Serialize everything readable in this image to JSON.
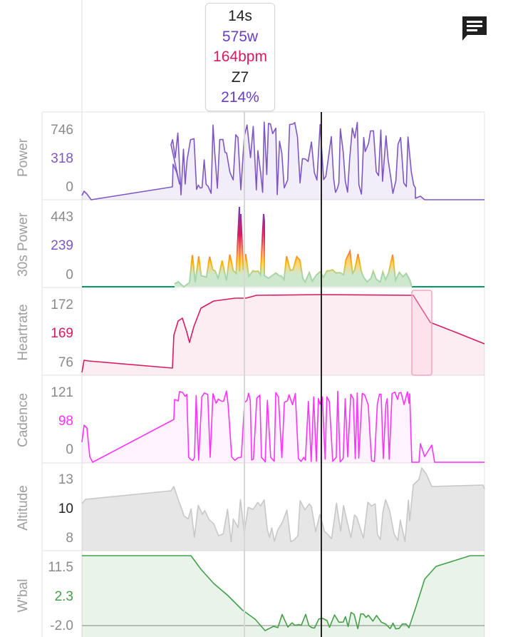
{
  "tooltip": {
    "time": "14s",
    "power": "575w",
    "heartrate": "164bpm",
    "zone": "Z7",
    "percent": "214%"
  },
  "colors": {
    "power": "#7e57c2",
    "heartrate": "#d81b60",
    "cadence": "#ff33ff",
    "altitude": "#bdbdbd",
    "wbal": "#43a047",
    "text": "#222222"
  },
  "toolbar": {
    "comment_icon": "comment-icon"
  },
  "panels": [
    {
      "key": "power",
      "title": "Power",
      "ticks": [
        "746",
        "318",
        "0"
      ]
    },
    {
      "key": "power30",
      "title": "30s Power",
      "ticks": [
        "443",
        "239",
        "0"
      ]
    },
    {
      "key": "hr",
      "title": "Heartrate",
      "ticks": [
        "172",
        "169",
        "76"
      ]
    },
    {
      "key": "cadence",
      "title": "Cadence",
      "ticks": [
        "121",
        "98",
        "0"
      ]
    },
    {
      "key": "altitude",
      "title": "Altitude",
      "ticks": [
        "13",
        "10",
        "8"
      ]
    },
    {
      "key": "wbal",
      "title": "W'bal",
      "ticks": [
        "11.5",
        "2.3",
        "-2.0"
      ]
    }
  ]
}
